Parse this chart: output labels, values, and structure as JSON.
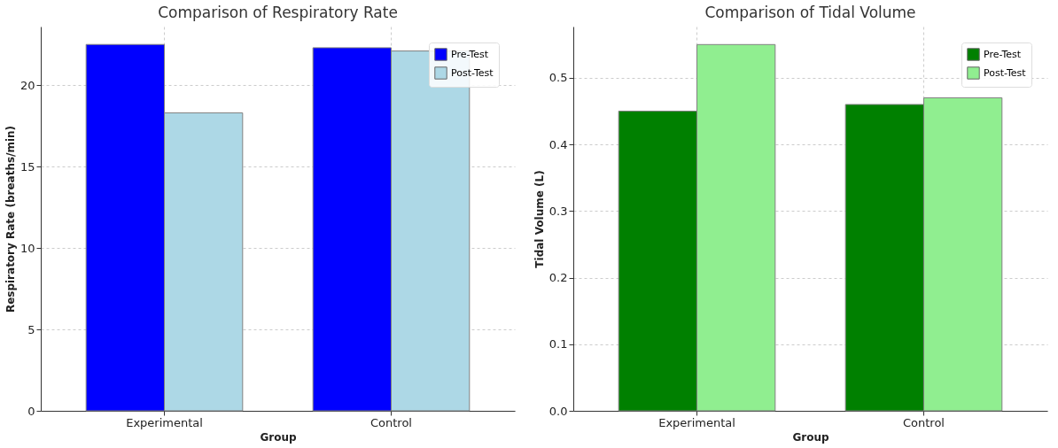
{
  "chart_data": [
    {
      "type": "bar",
      "title": "Comparison of Respiratory Rate",
      "xlabel": "Group",
      "ylabel": "Respiratory Rate (breaths/min)",
      "categories": [
        "Experimental",
        "Control"
      ],
      "series": [
        {
          "name": "Pre-Test",
          "color": "#0000ff",
          "values": [
            22.5,
            22.3
          ]
        },
        {
          "name": "Post-Test",
          "color": "#add8e6",
          "values": [
            18.3,
            22.1
          ]
        }
      ],
      "ylim": [
        0,
        23.6
      ],
      "yticks": [
        0,
        5,
        10,
        15,
        20
      ],
      "grid": true,
      "legend": "top right"
    },
    {
      "type": "bar",
      "title": "Comparison of Tidal Volume",
      "xlabel": "Group",
      "ylabel": "Tidal Volume (L)",
      "categories": [
        "Experimental",
        "Control"
      ],
      "series": [
        {
          "name": "Pre-Test",
          "color": "#008000",
          "values": [
            0.45,
            0.46
          ]
        },
        {
          "name": "Post-Test",
          "color": "#90ee90",
          "values": [
            0.55,
            0.47
          ]
        }
      ],
      "ylim": [
        0,
        0.577
      ],
      "yticks": [
        {
          "value": 0,
          "label": "0.0"
        },
        0.1,
        0.2,
        0.3,
        0.4,
        0.5
      ],
      "grid": true,
      "legend": "top right"
    }
  ]
}
